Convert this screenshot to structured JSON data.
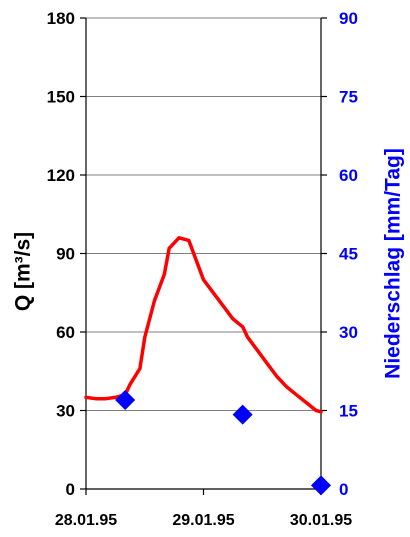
{
  "chart_data": {
    "type": "line",
    "x_ticks": [
      "28.01.95",
      "29.01.95",
      "30.01.95"
    ],
    "x_range": [
      "28.01.95 00:00",
      "30.01.95 00:00"
    ],
    "y_left": {
      "label": "Q [m³/s]",
      "range": [
        0,
        180
      ],
      "ticks": [
        0,
        30,
        60,
        90,
        120,
        150,
        180
      ],
      "color": "#000000"
    },
    "y_right": {
      "label": "Niederschlag [mm/Tag]",
      "range": [
        0,
        90
      ],
      "ticks": [
        0,
        15,
        30,
        45,
        60,
        75,
        90
      ],
      "color": "#0000ff"
    },
    "grid": "horizontal",
    "legend": "none",
    "series": [
      {
        "type": "line",
        "axis": "left",
        "color": "#ff0000",
        "x": [
          "28.01.95 00:00",
          "28.01.95 02:00",
          "28.01.95 04:00",
          "28.01.95 06:00",
          "28.01.95 08:00",
          "28.01.95 09:00",
          "28.01.95 11:00",
          "28.01.95 12:00",
          "28.01.95 14:00",
          "28.01.95 16:00",
          "28.01.95 17:00",
          "28.01.95 19:00",
          "28.01.95 21:00",
          "28.01.95 22:00",
          "28.01.95 23:00",
          "29.01.95 00:00",
          "29.01.95 02:00",
          "29.01.95 04:00",
          "29.01.95 06:00",
          "29.01.95 08:00",
          "29.01.95 09:00",
          "29.01.95 11:00",
          "29.01.95 13:00",
          "29.01.95 15:00",
          "29.01.95 17:00",
          "29.01.95 19:00",
          "29.01.95 21:00",
          "29.01.95 23:00",
          "30.01.95 00:00"
        ],
        "values": [
          35,
          34.5,
          34.5,
          35,
          36,
          40,
          46,
          58,
          72,
          82,
          92,
          96,
          95,
          90,
          85,
          80,
          75,
          70,
          65,
          62,
          58,
          53,
          48,
          43,
          39,
          36,
          33,
          30,
          29.5
        ]
      },
      {
        "type": "scatter",
        "axis": "right",
        "color": "#0000ff",
        "x": [
          "28.01.95 08:00",
          "29.01.95 08:00",
          "30.01.95 00:00"
        ],
        "values": [
          17,
          14.2,
          0.7
        ]
      }
    ]
  }
}
